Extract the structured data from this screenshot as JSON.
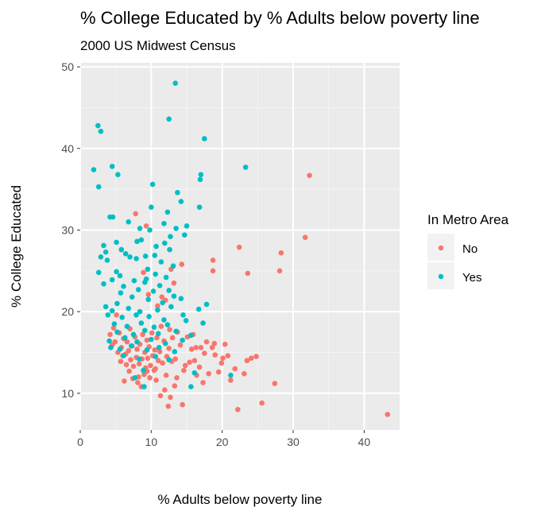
{
  "chart_data": {
    "type": "scatter",
    "title": "% College Educated by % Adults below poverty line",
    "subtitle": "2000 US Midwest Census",
    "xlabel": "% Adults below poverty line",
    "ylabel": "% College Educated",
    "xlim": [
      0,
      45
    ],
    "ylim": [
      5.5,
      50.5
    ],
    "xticks": [
      0,
      10,
      20,
      30,
      40
    ],
    "yticks": [
      10,
      20,
      30,
      40,
      50
    ],
    "xtick_labels": [
      "0",
      "10",
      "20",
      "30",
      "40"
    ],
    "ytick_labels": [
      "10",
      "20",
      "30",
      "40",
      "50"
    ],
    "grid": true,
    "legend": {
      "title": "In Metro Area",
      "placement": "right",
      "entries": [
        "No",
        "Yes"
      ]
    },
    "series": [
      {
        "name": "No",
        "color": "#F8766D",
        "points": [
          [
            43.3,
            7.4
          ],
          [
            32.3,
            36.7
          ],
          [
            31.7,
            29.1
          ],
          [
            28.3,
            27.2
          ],
          [
            28.1,
            25.0
          ],
          [
            27.4,
            11.2
          ],
          [
            25.6,
            8.8
          ],
          [
            24.8,
            14.5
          ],
          [
            24.1,
            14.3
          ],
          [
            23.5,
            14.0
          ],
          [
            23.6,
            24.7
          ],
          [
            23.1,
            12.4
          ],
          [
            22.4,
            27.9
          ],
          [
            22.2,
            8.0
          ],
          [
            21.8,
            13.0
          ],
          [
            21.2,
            11.6
          ],
          [
            20.8,
            14.6
          ],
          [
            20.4,
            16.0
          ],
          [
            19.9,
            13.7
          ],
          [
            19.5,
            12.6
          ],
          [
            19.0,
            14.7
          ],
          [
            18.7,
            26.3
          ],
          [
            18.7,
            25.0
          ],
          [
            18.6,
            15.6
          ],
          [
            18.1,
            12.4
          ],
          [
            17.5,
            14.9
          ],
          [
            17.3,
            11.3
          ],
          [
            17.0,
            15.6
          ],
          [
            16.8,
            13.2
          ],
          [
            16.4,
            12.2
          ],
          [
            16.1,
            14.0
          ],
          [
            15.7,
            15.4
          ],
          [
            15.4,
            13.8
          ],
          [
            15.1,
            16.9
          ],
          [
            14.6,
            12.8
          ],
          [
            14.3,
            25.8
          ],
          [
            14.4,
            8.6
          ],
          [
            14.1,
            15.9
          ],
          [
            13.7,
            17.5
          ],
          [
            13.4,
            14.2
          ],
          [
            13.3,
            10.9
          ],
          [
            13.0,
            16.8
          ],
          [
            12.9,
            13.9
          ],
          [
            12.6,
            17.8
          ],
          [
            12.5,
            15.5
          ],
          [
            12.4,
            8.4
          ],
          [
            12.2,
            14.5
          ],
          [
            12.1,
            12.2
          ],
          [
            12.0,
            21.4
          ],
          [
            11.8,
            16.4
          ],
          [
            11.6,
            13.7
          ],
          [
            11.4,
            18.2
          ],
          [
            11.3,
            9.7
          ],
          [
            11.2,
            15.1
          ],
          [
            11.0,
            14.0
          ],
          [
            10.8,
            16.8
          ],
          [
            10.7,
            11.6
          ],
          [
            10.5,
            15.3
          ],
          [
            10.4,
            12.8
          ],
          [
            10.2,
            14.6
          ],
          [
            10.1,
            17.4
          ],
          [
            9.9,
            13.4
          ],
          [
            9.8,
            11.9
          ],
          [
            9.7,
            15.7
          ],
          [
            9.5,
            14.3
          ],
          [
            9.4,
            16.5
          ],
          [
            9.2,
            13.1
          ],
          [
            9.1,
            15.0
          ],
          [
            9.0,
            12.3
          ],
          [
            8.8,
            17.2
          ],
          [
            8.7,
            14.2
          ],
          [
            8.6,
            10.8
          ],
          [
            8.4,
            16.0
          ],
          [
            8.3,
            13.6
          ],
          [
            8.2,
            12.0
          ],
          [
            8.0,
            15.4
          ],
          [
            7.9,
            14.4
          ],
          [
            7.8,
            32.0
          ],
          [
            7.7,
            16.9
          ],
          [
            7.5,
            13.3
          ],
          [
            7.4,
            11.8
          ],
          [
            7.3,
            15.8
          ],
          [
            7.1,
            14.1
          ],
          [
            7.0,
            17.9
          ],
          [
            6.9,
            12.7
          ],
          [
            6.8,
            15.2
          ],
          [
            6.6,
            16.3
          ],
          [
            6.5,
            13.5
          ],
          [
            6.4,
            14.8
          ],
          [
            6.2,
            11.5
          ],
          [
            6.1,
            16.7
          ],
          [
            6.0,
            14.6
          ],
          [
            5.8,
            15.6
          ],
          [
            5.7,
            13.9
          ],
          [
            5.5,
            17.4
          ],
          [
            5.3,
            15.0
          ],
          [
            5.1,
            19.6
          ],
          [
            4.9,
            16.3
          ],
          [
            4.7,
            18.0
          ],
          [
            4.5,
            15.9
          ],
          [
            4.2,
            17.2
          ],
          [
            9.3,
            30.5
          ],
          [
            8.9,
            24.8
          ],
          [
            10.9,
            20.7
          ],
          [
            12.8,
            25.2
          ],
          [
            11.5,
            21.8
          ],
          [
            13.2,
            23.5
          ],
          [
            9.6,
            22.1
          ],
          [
            15.9,
            17.2
          ],
          [
            17.8,
            16.3
          ],
          [
            16.3,
            15.6
          ],
          [
            18.9,
            16.1
          ],
          [
            20.1,
            14.3
          ],
          [
            11.9,
            10.4
          ],
          [
            12.7,
            9.5
          ],
          [
            13.6,
            11.9
          ],
          [
            14.8,
            13.4
          ],
          [
            10.6,
            13.0
          ],
          [
            9.4,
            12.7
          ],
          [
            8.1,
            11.3
          ]
        ]
      },
      {
        "name": "Yes",
        "color": "#00BFC4",
        "points": [
          [
            13.4,
            48.0
          ],
          [
            2.5,
            42.8
          ],
          [
            2.9,
            42.1
          ],
          [
            12.5,
            43.6
          ],
          [
            17.5,
            41.2
          ],
          [
            1.9,
            37.4
          ],
          [
            4.5,
            37.8
          ],
          [
            5.3,
            36.8
          ],
          [
            23.3,
            37.7
          ],
          [
            17.0,
            36.8
          ],
          [
            16.9,
            36.2
          ],
          [
            10.2,
            35.6
          ],
          [
            2.6,
            35.3
          ],
          [
            13.7,
            34.6
          ],
          [
            14.2,
            33.5
          ],
          [
            10.0,
            32.8
          ],
          [
            12.3,
            32.2
          ],
          [
            16.8,
            32.8
          ],
          [
            4.2,
            31.6
          ],
          [
            4.6,
            31.6
          ],
          [
            6.8,
            31.0
          ],
          [
            11.8,
            30.8
          ],
          [
            13.5,
            30.2
          ],
          [
            15.0,
            30.5
          ],
          [
            8.4,
            30.2
          ],
          [
            9.8,
            30.0
          ],
          [
            14.7,
            29.4
          ],
          [
            12.7,
            29.2
          ],
          [
            8.6,
            28.8
          ],
          [
            8.0,
            28.6
          ],
          [
            11.9,
            28.4
          ],
          [
            3.3,
            28.1
          ],
          [
            5.1,
            28.5
          ],
          [
            3.6,
            27.3
          ],
          [
            5.8,
            27.6
          ],
          [
            6.4,
            27.1
          ],
          [
            9.2,
            26.8
          ],
          [
            10.5,
            26.9
          ],
          [
            7.9,
            26.5
          ],
          [
            7.0,
            26.7
          ],
          [
            11.4,
            26.1
          ],
          [
            13.1,
            25.6
          ],
          [
            9.5,
            25.2
          ],
          [
            10.6,
            24.6
          ],
          [
            12.1,
            24.2
          ],
          [
            2.6,
            24.8
          ],
          [
            5.1,
            24.9
          ],
          [
            5.6,
            24.4
          ],
          [
            4.5,
            23.9
          ],
          [
            7.6,
            23.8
          ],
          [
            9.1,
            23.6
          ],
          [
            11.2,
            23.2
          ],
          [
            3.3,
            23.4
          ],
          [
            6.1,
            23.1
          ],
          [
            8.2,
            22.7
          ],
          [
            10.3,
            22.5
          ],
          [
            12.5,
            22.6
          ],
          [
            13.2,
            21.9
          ],
          [
            5.7,
            22.3
          ],
          [
            7.3,
            21.8
          ],
          [
            9.6,
            21.5
          ],
          [
            11.6,
            21.1
          ],
          [
            14.2,
            21.6
          ],
          [
            17.8,
            20.9
          ],
          [
            3.6,
            20.6
          ],
          [
            4.5,
            20.1
          ],
          [
            6.8,
            20.4
          ],
          [
            8.4,
            20.0
          ],
          [
            10.9,
            20.2
          ],
          [
            12.8,
            20.6
          ],
          [
            16.7,
            20.3
          ],
          [
            3.9,
            19.6
          ],
          [
            5.9,
            19.3
          ],
          [
            7.9,
            19.6
          ],
          [
            9.7,
            19.4
          ],
          [
            11.8,
            19.0
          ],
          [
            14.5,
            19.6
          ],
          [
            17.3,
            18.6
          ],
          [
            4.8,
            18.5
          ],
          [
            6.6,
            18.2
          ],
          [
            8.6,
            18.6
          ],
          [
            10.4,
            18.1
          ],
          [
            12.3,
            18.4
          ],
          [
            14.9,
            18.9
          ],
          [
            5.2,
            17.5
          ],
          [
            7.5,
            17.2
          ],
          [
            9.1,
            17.7
          ],
          [
            11.0,
            17.3
          ],
          [
            13.5,
            17.6
          ],
          [
            15.6,
            17.1
          ],
          [
            4.1,
            16.4
          ],
          [
            6.3,
            16.8
          ],
          [
            8.0,
            16.3
          ],
          [
            10.0,
            16.6
          ],
          [
            12.0,
            16.1
          ],
          [
            14.4,
            16.5
          ],
          [
            4.3,
            15.6
          ],
          [
            5.6,
            15.4
          ],
          [
            7.2,
            15.8
          ],
          [
            9.4,
            15.3
          ],
          [
            11.1,
            15.6
          ],
          [
            13.3,
            15.1
          ],
          [
            6.1,
            14.6
          ],
          [
            8.3,
            14.2
          ],
          [
            10.6,
            14.5
          ],
          [
            12.5,
            14.1
          ],
          [
            8.9,
            12.8
          ],
          [
            9.0,
            10.8
          ],
          [
            7.7,
            11.9
          ],
          [
            15.6,
            10.8
          ],
          [
            21.2,
            12.2
          ],
          [
            16.1,
            12.5
          ],
          [
            5.2,
            21.0
          ],
          [
            3.8,
            26.3
          ],
          [
            12.6,
            27.6
          ],
          [
            9.3,
            24.0
          ],
          [
            10.7,
            28.0
          ],
          [
            2.9,
            26.7
          ]
        ]
      }
    ]
  }
}
